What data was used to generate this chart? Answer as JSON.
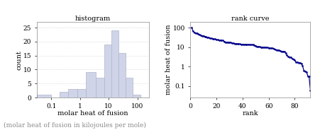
{
  "hist_title": "histogram",
  "hist_xlabel": "molar heat of fusion",
  "hist_ylabel": "count",
  "rank_title": "rank curve",
  "rank_xlabel": "rank",
  "rank_ylabel": "molar heat of fusion",
  "caption": "(molar heat of fusion in kilojoules per mole)",
  "hist_bar_color": "#d0d4e8",
  "hist_bar_edgecolor": "#b0b4c8",
  "rank_line_color": "#00008b",
  "hist_ylim": [
    0,
    27
  ],
  "hist_yticks": [
    0,
    5,
    10,
    15,
    20,
    25
  ],
  "rank_xlim": [
    0,
    92
  ],
  "rank_xticks": [
    0,
    20,
    40,
    60,
    80
  ],
  "fig_bg": "#ffffff",
  "font_size": 7.0,
  "caption_color": "#888888"
}
